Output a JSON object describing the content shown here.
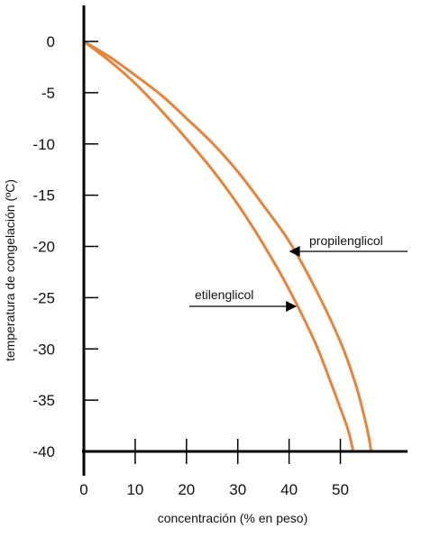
{
  "chart_data": {
    "type": "line",
    "xlabel": "concentración (% en peso)",
    "ylabel": "temperatura de congelación (ºC)",
    "xlim": [
      0,
      60
    ],
    "ylim": [
      -40,
      0
    ],
    "x_ticks": [
      0,
      10,
      20,
      30,
      40,
      50
    ],
    "y_ticks": [
      0,
      -5,
      -10,
      -15,
      -20,
      -25,
      -30,
      -35,
      -40
    ],
    "grid": false,
    "series_color": "#e8843a",
    "series": [
      {
        "name": "etilenglicol",
        "points": [
          [
            0,
            0
          ],
          [
            5,
            -1.5
          ],
          [
            10,
            -3.3
          ],
          [
            15,
            -5.2
          ],
          [
            20,
            -7.5
          ],
          [
            25,
            -9.9
          ],
          [
            30,
            -12.7
          ],
          [
            35,
            -16.0
          ],
          [
            40,
            -19.5
          ],
          [
            45,
            -24.0
          ],
          [
            50,
            -29.3
          ],
          [
            53,
            -33.5
          ],
          [
            54.5,
            -36.3
          ],
          [
            55.5,
            -38.5
          ],
          [
            56,
            -40
          ]
        ]
      },
      {
        "name": "propilenglicol",
        "points": [
          [
            0,
            0
          ],
          [
            5,
            -1.9
          ],
          [
            10,
            -4.1
          ],
          [
            15,
            -6.7
          ],
          [
            20,
            -9.5
          ],
          [
            25,
            -12.5
          ],
          [
            30,
            -15.9
          ],
          [
            35,
            -19.8
          ],
          [
            40,
            -24.2
          ],
          [
            45,
            -29.3
          ],
          [
            48,
            -33.1
          ],
          [
            50,
            -35.8
          ],
          [
            51.5,
            -37.9
          ],
          [
            52.5,
            -40
          ]
        ]
      }
    ],
    "annotations": [
      {
        "label": "propilenglicol",
        "series": "propilenglicol",
        "at": [
          40,
          -20.2
        ]
      },
      {
        "label": "etilenglicol",
        "series": "etilenglicol",
        "at": [
          41.5,
          -25.7
        ]
      }
    ]
  }
}
